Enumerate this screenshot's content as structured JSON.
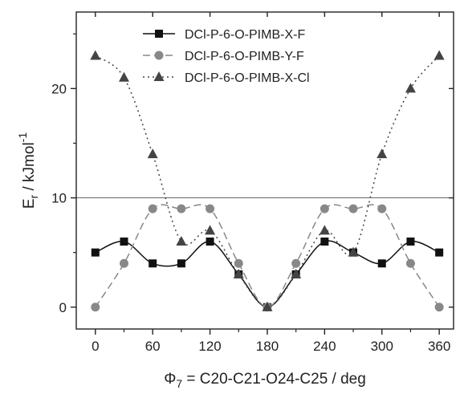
{
  "chart_data": {
    "type": "line",
    "xlabel_prefix": "Φ",
    "xlabel_sub": "7",
    "xlabel_rest": " = C20-C21-O24-C25 / deg",
    "ylabel_main": "E",
    "ylabel_sub": "r",
    "ylabel_rest": " / kJmol",
    "ylabel_sup": "-1",
    "xlim": [
      -20,
      375
    ],
    "ylim": [
      -2,
      27
    ],
    "x_ticks": [
      0,
      60,
      120,
      180,
      240,
      300,
      360
    ],
    "y_ticks": [
      0,
      10,
      20
    ],
    "reference_line_y": 10,
    "legend_position": "top",
    "x": [
      0,
      30,
      60,
      90,
      120,
      150,
      180,
      210,
      240,
      270,
      300,
      330,
      360
    ],
    "series": [
      {
        "name": "DCl-P-6-O-PIMB-X-F",
        "line": "solid",
        "marker": "square",
        "color": "#111111",
        "values": [
          5,
          6,
          4,
          4,
          6,
          3,
          0,
          3,
          6,
          5,
          4,
          6,
          5
        ]
      },
      {
        "name": "DCl-P-6-O-PIMB-Y-F",
        "line": "dashed",
        "marker": "circle",
        "color": "#888888",
        "values": [
          0,
          4,
          9,
          9,
          9,
          4,
          0,
          4,
          9,
          9,
          9,
          4,
          0
        ]
      },
      {
        "name": "DCl-P-6-O-PIMB-X-Cl",
        "line": "dotted",
        "marker": "triangle",
        "color": "#444444",
        "values": [
          23,
          21,
          14,
          6,
          7,
          3,
          0,
          3,
          7,
          5,
          14,
          20,
          23
        ]
      }
    ]
  }
}
